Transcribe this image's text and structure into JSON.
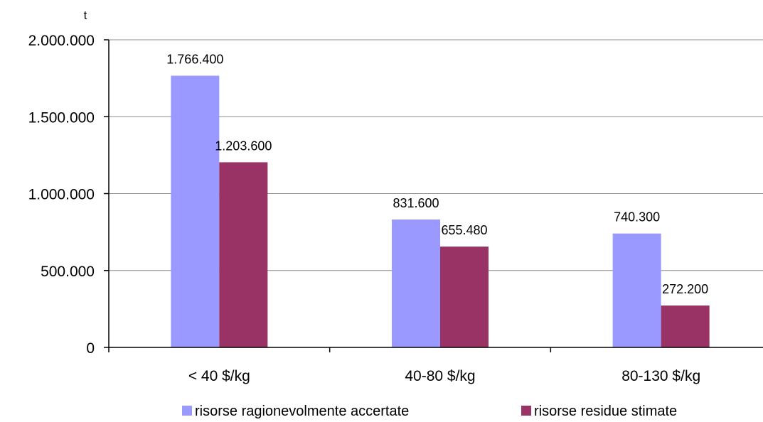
{
  "chart_data": {
    "type": "bar",
    "unit": "t",
    "categories": [
      "< 40 $/kg",
      "40-80 $/kg",
      "80-130 $/kg"
    ],
    "series": [
      {
        "name": "risorse ragionevolmente accertate",
        "color": "#9999ff",
        "values": [
          1766400,
          831600,
          740300
        ],
        "labels": [
          "1.766.400",
          "831.600",
          "740.300"
        ]
      },
      {
        "name": "risorse residue stimate",
        "color": "#993366",
        "values": [
          1203600,
          655480,
          272200
        ],
        "labels": [
          "1.203.600",
          "655.480",
          "272.200"
        ]
      }
    ],
    "y_ticks": [
      0,
      500000,
      1000000,
      1500000,
      2000000
    ],
    "y_tick_labels": [
      "0",
      "500.000",
      "1.000.000",
      "1.500.000",
      "2.000.000"
    ],
    "ylim": [
      0,
      2000000
    ],
    "grid": true,
    "legend_position": "bottom"
  }
}
